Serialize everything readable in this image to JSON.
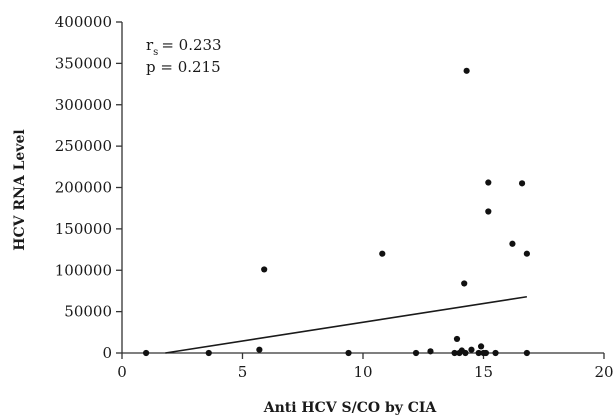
{
  "chart_data": {
    "type": "scatter",
    "title": "",
    "xlabel": "Anti HCV S/CO by CIA",
    "ylabel": "HCV RNA Level",
    "xlim": [
      0,
      20
    ],
    "ylim": [
      0,
      400000
    ],
    "x_ticks": [
      0,
      5,
      10,
      15,
      20
    ],
    "y_ticks": [
      0,
      50000,
      100000,
      150000,
      200000,
      250000,
      300000,
      350000,
      400000
    ],
    "grid": false,
    "legend": "none",
    "point_color": "#111111",
    "annotations": {
      "rs_symbol": "r",
      "rs_subscript": "s",
      "rs_value": "= 0.233",
      "p_text": "p = 0.215"
    },
    "trendline": {
      "x": [
        1.8,
        16.8
      ],
      "y": [
        0,
        68000
      ]
    },
    "points": [
      {
        "x": 1.0,
        "y": 0
      },
      {
        "x": 3.6,
        "y": 0
      },
      {
        "x": 5.7,
        "y": 4000
      },
      {
        "x": 5.9,
        "y": 101000
      },
      {
        "x": 9.4,
        "y": 0
      },
      {
        "x": 10.8,
        "y": 120000
      },
      {
        "x": 12.2,
        "y": 0
      },
      {
        "x": 12.8,
        "y": 2000
      },
      {
        "x": 13.8,
        "y": 0
      },
      {
        "x": 13.9,
        "y": 17000
      },
      {
        "x": 14.0,
        "y": 0
      },
      {
        "x": 14.1,
        "y": 3000
      },
      {
        "x": 14.2,
        "y": 84000
      },
      {
        "x": 14.25,
        "y": 0
      },
      {
        "x": 14.3,
        "y": 341000
      },
      {
        "x": 14.5,
        "y": 4000
      },
      {
        "x": 14.8,
        "y": 0
      },
      {
        "x": 14.9,
        "y": 8000
      },
      {
        "x": 15.0,
        "y": 0
      },
      {
        "x": 15.1,
        "y": 0
      },
      {
        "x": 15.2,
        "y": 206000
      },
      {
        "x": 15.2,
        "y": 171000
      },
      {
        "x": 15.5,
        "y": 0
      },
      {
        "x": 16.2,
        "y": 132000
      },
      {
        "x": 16.6,
        "y": 205000
      },
      {
        "x": 16.8,
        "y": 120000
      },
      {
        "x": 16.8,
        "y": 0
      }
    ]
  }
}
